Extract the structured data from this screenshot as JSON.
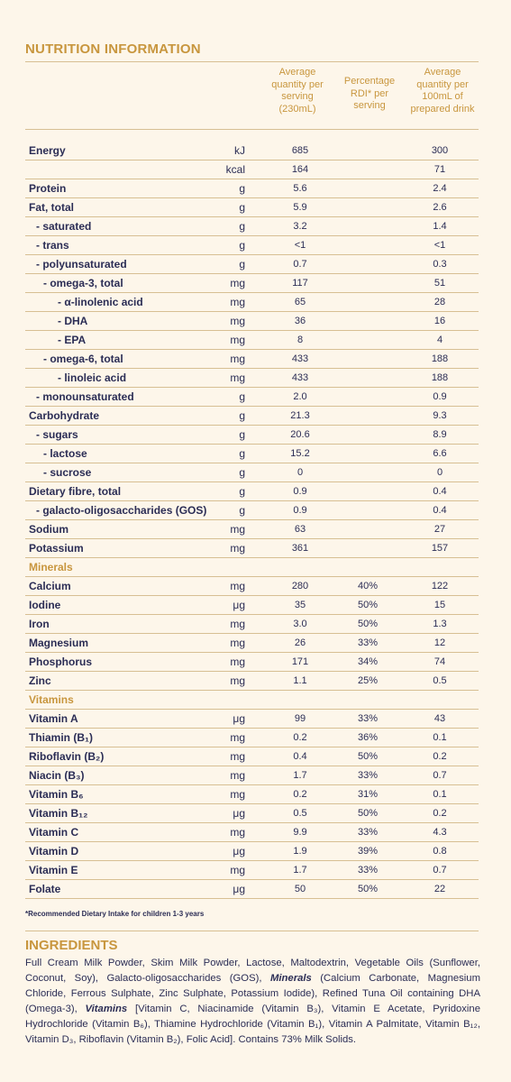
{
  "title": "NUTRITION INFORMATION",
  "columns": {
    "avg_serving": "Average\nquantity per\nserving\n(230mL)",
    "rdi": "Percentage\nRDI* per\nserving",
    "avg_100ml": "Average\nquantity per\n100mL of\nprepared drink"
  },
  "rows": [
    {
      "name": "Energy",
      "unit": "kJ",
      "avg": "685",
      "rdi": "",
      "hund": "300"
    },
    {
      "name": "",
      "unit": "kcal",
      "avg": "164",
      "rdi": "",
      "hund": "71"
    },
    {
      "name": "Protein",
      "unit": "g",
      "avg": "5.6",
      "rdi": "",
      "hund": "2.4"
    },
    {
      "name": "Fat, total",
      "unit": "g",
      "avg": "5.9",
      "rdi": "",
      "hund": "2.6"
    },
    {
      "name": "- saturated",
      "unit": "g",
      "avg": "3.2",
      "rdi": "",
      "hund": "1.4"
    },
    {
      "name": "- trans",
      "unit": "g",
      "avg": "<1",
      "rdi": "",
      "hund": "<1"
    },
    {
      "name": "- polyunsaturated",
      "unit": "g",
      "avg": "0.7",
      "rdi": "",
      "hund": "0.3"
    },
    {
      "name": "- omega-3, total",
      "unit": "mg",
      "avg": "117",
      "rdi": "",
      "hund": "51"
    },
    {
      "name": "- α-linolenic acid",
      "unit": "mg",
      "avg": "65",
      "rdi": "",
      "hund": "28"
    },
    {
      "name": "- DHA",
      "unit": "mg",
      "avg": "36",
      "rdi": "",
      "hund": "16"
    },
    {
      "name": "- EPA",
      "unit": "mg",
      "avg": "8",
      "rdi": "",
      "hund": "4"
    },
    {
      "name": "- omega-6, total",
      "unit": "mg",
      "avg": "433",
      "rdi": "",
      "hund": "188"
    },
    {
      "name": "- linoleic acid",
      "unit": "mg",
      "avg": "433",
      "rdi": "",
      "hund": "188"
    },
    {
      "name": "- monounsaturated",
      "unit": "g",
      "avg": "2.0",
      "rdi": "",
      "hund": "0.9"
    },
    {
      "name": "Carbohydrate",
      "unit": "g",
      "avg": "21.3",
      "rdi": "",
      "hund": "9.3"
    },
    {
      "name": "- sugars",
      "unit": "g",
      "avg": "20.6",
      "rdi": "",
      "hund": "8.9"
    },
    {
      "name": "- lactose",
      "unit": "g",
      "avg": "15.2",
      "rdi": "",
      "hund": "6.6"
    },
    {
      "name": "- sucrose",
      "unit": "g",
      "avg": "0",
      "rdi": "",
      "hund": "0"
    },
    {
      "name": "Dietary fibre, total",
      "unit": "g",
      "avg": "0.9",
      "rdi": "",
      "hund": "0.4"
    },
    {
      "name": "- galacto-oligosaccharides (GOS)",
      "unit": "g",
      "avg": "0.9",
      "rdi": "",
      "hund": "0.4"
    },
    {
      "name": "Sodium",
      "unit": "mg",
      "avg": "63",
      "rdi": "",
      "hund": "27"
    },
    {
      "name": "Potassium",
      "unit": "mg",
      "avg": "361",
      "rdi": "",
      "hund": "157"
    },
    {
      "name": "Minerals",
      "unit": "",
      "avg": "",
      "rdi": "",
      "hund": "",
      "section": true
    },
    {
      "name": "Calcium",
      "unit": "mg",
      "avg": "280",
      "rdi": "40%",
      "hund": "122"
    },
    {
      "name": "Iodine",
      "unit": "μg",
      "avg": "35",
      "rdi": "50%",
      "hund": "15"
    },
    {
      "name": "Iron",
      "unit": "mg",
      "avg": "3.0",
      "rdi": "50%",
      "hund": "1.3"
    },
    {
      "name": "Magnesium",
      "unit": "mg",
      "avg": "26",
      "rdi": "33%",
      "hund": "12"
    },
    {
      "name": "Phosphorus",
      "unit": "mg",
      "avg": "171",
      "rdi": "34%",
      "hund": "74"
    },
    {
      "name": "Zinc",
      "unit": "mg",
      "avg": "1.1",
      "rdi": "25%",
      "hund": "0.5"
    },
    {
      "name": "Vitamins",
      "unit": "",
      "avg": "",
      "rdi": "",
      "hund": "",
      "section": true
    },
    {
      "name": "Vitamin A",
      "unit": "μg",
      "avg": "99",
      "rdi": "33%",
      "hund": "43"
    },
    {
      "name": "Thiamin (B₁)",
      "unit": "mg",
      "avg": "0.2",
      "rdi": "36%",
      "hund": "0.1"
    },
    {
      "name": "Riboflavin (B₂)",
      "unit": "mg",
      "avg": "0.4",
      "rdi": "50%",
      "hund": "0.2"
    },
    {
      "name": "Niacin (B₃)",
      "unit": "mg",
      "avg": "1.7",
      "rdi": "33%",
      "hund": "0.7"
    },
    {
      "name": "Vitamin B₆",
      "unit": "mg",
      "avg": "0.2",
      "rdi": "31%",
      "hund": "0.1"
    },
    {
      "name": "Vitamin B₁₂",
      "unit": "μg",
      "avg": "0.5",
      "rdi": "50%",
      "hund": "0.2"
    },
    {
      "name": "Vitamin C",
      "unit": "mg",
      "avg": "9.9",
      "rdi": "33%",
      "hund": "4.3"
    },
    {
      "name": "Vitamin D",
      "unit": "μg",
      "avg": "1.9",
      "rdi": "39%",
      "hund": "0.8"
    },
    {
      "name": "Vitamin E",
      "unit": "mg",
      "avg": "1.7",
      "rdi": "33%",
      "hund": "0.7"
    },
    {
      "name": "Folate",
      "unit": "μg",
      "avg": "50",
      "rdi": "50%",
      "hund": "22"
    }
  ],
  "footnote": "*Recommended Dietary Intake for children 1-3 years",
  "ingredients_title": "INGREDIENTS",
  "ingredients": {
    "part1": "Full Cream Milk Powder, Skim Milk Powder, Lactose, Maltodextrin, Vegetable Oils (Sunflower, Coconut, Soy), Galacto-oligosaccharides (GOS), ",
    "minerals_label": "Minerals",
    "part2": " (Calcium Carbonate, Magnesium Chloride, Ferrous Sulphate, Zinc Sulphate, Potassium Iodide), Refined Tuna Oil containing DHA (Omega-3), ",
    "vitamins_label": "Vitamins",
    "part3": " [Vitamin C, Niacinamide (Vitamin B₃), Vitamin E Acetate, Pyridoxine Hydrochloride (Vitamin B₆), Thiamine Hydrochloride (Vitamin B₁), Vitamin A Palmitate, Vitamin B₁₂, Vitamin D₃, Riboflavin (Vitamin B₂), Folic Acid]. Contains 73% Milk Solids."
  }
}
